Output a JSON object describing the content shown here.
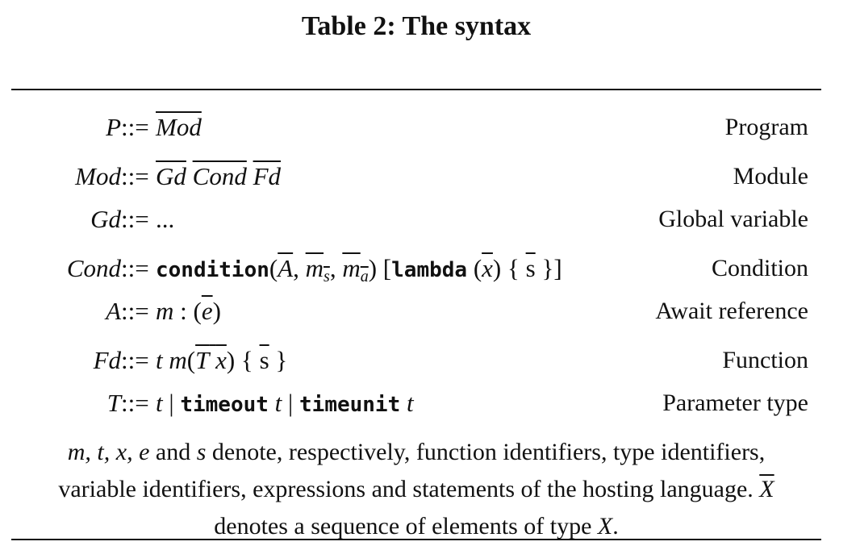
{
  "caption": "Table 2: The syntax",
  "assign_symbol": "::=",
  "rows": [
    {
      "lhs": "P",
      "description": "Program"
    },
    {
      "lhs": "Mod",
      "description": "Module"
    },
    {
      "lhs": "Gd",
      "description": "Global variable"
    },
    {
      "lhs": "Cond",
      "description": "Condition"
    },
    {
      "lhs": "A",
      "description": "Await reference"
    },
    {
      "lhs": "Fd",
      "description": "Function"
    },
    {
      "lhs": "T",
      "description": "Parameter type"
    }
  ],
  "rhs": {
    "program": [
      "Mod"
    ],
    "module": [
      "Gd",
      "Cond",
      "Fd"
    ],
    "global": "...",
    "condition": {
      "keyword": "condition",
      "args": [
        "A",
        "m",
        "s",
        "m",
        "a"
      ],
      "lambda_keyword": "lambda",
      "lambda_param": "x",
      "lambda_body": "s"
    },
    "await": {
      "name": "m",
      "expr": "e"
    },
    "function": {
      "type": "t",
      "name": "m",
      "ptype": "T",
      "pname": "x",
      "body": "s"
    },
    "ptype": {
      "t1": "t",
      "kw1": "timeout",
      "t2": "t",
      "kw2": "timeunit",
      "t3": "t"
    }
  },
  "note": {
    "vars": "m, t, x, e",
    "and": " and ",
    "s": "s",
    "line1_rest": " denote, respectively, function identifiers, type identifiers,",
    "line2": "variable identifiers, expressions and statements of the hosting language. ",
    "X": "X",
    "line3_a": "denotes a sequence of elements of type ",
    "line3_b": "X",
    "line3_c": "."
  }
}
